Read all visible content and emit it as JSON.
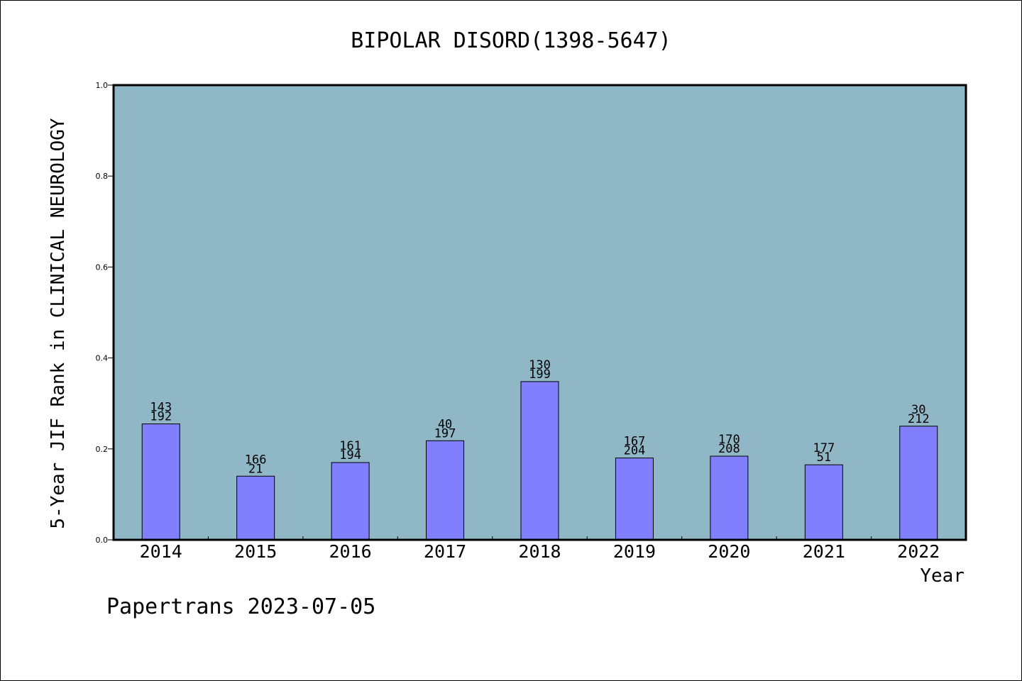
{
  "chart_data": {
    "type": "bar",
    "title": "BIPOLAR DISORD(1398-5647)",
    "xlabel": "Year",
    "ylabel": "5-Year JIF Rank in CLINICAL NEUROLOGY",
    "ylim": [
      0,
      1.0
    ],
    "yticks": [
      "0.0",
      "0.2",
      "0.4",
      "0.6",
      "0.8",
      "1.0"
    ],
    "categories": [
      "2014",
      "2015",
      "2016",
      "2017",
      "2018",
      "2019",
      "2020",
      "2021",
      "2022"
    ],
    "values": [
      0.255,
      0.14,
      0.17,
      0.218,
      0.348,
      0.18,
      0.184,
      0.165,
      0.25
    ],
    "labels_top": [
      "143",
      "166",
      "161",
      "40",
      "130",
      "167",
      "170",
      "177",
      "30"
    ],
    "labels_bottom": [
      "192",
      "21",
      "194",
      "197",
      "199",
      "204",
      "208",
      "51",
      "212"
    ],
    "grid": false,
    "colors": {
      "plot_background": "#8fb7c5",
      "bar_fill": "#8080ff",
      "bar_stroke": "#000000"
    }
  },
  "footer": {
    "source_text": "Papertrans 2023-07-05"
  }
}
